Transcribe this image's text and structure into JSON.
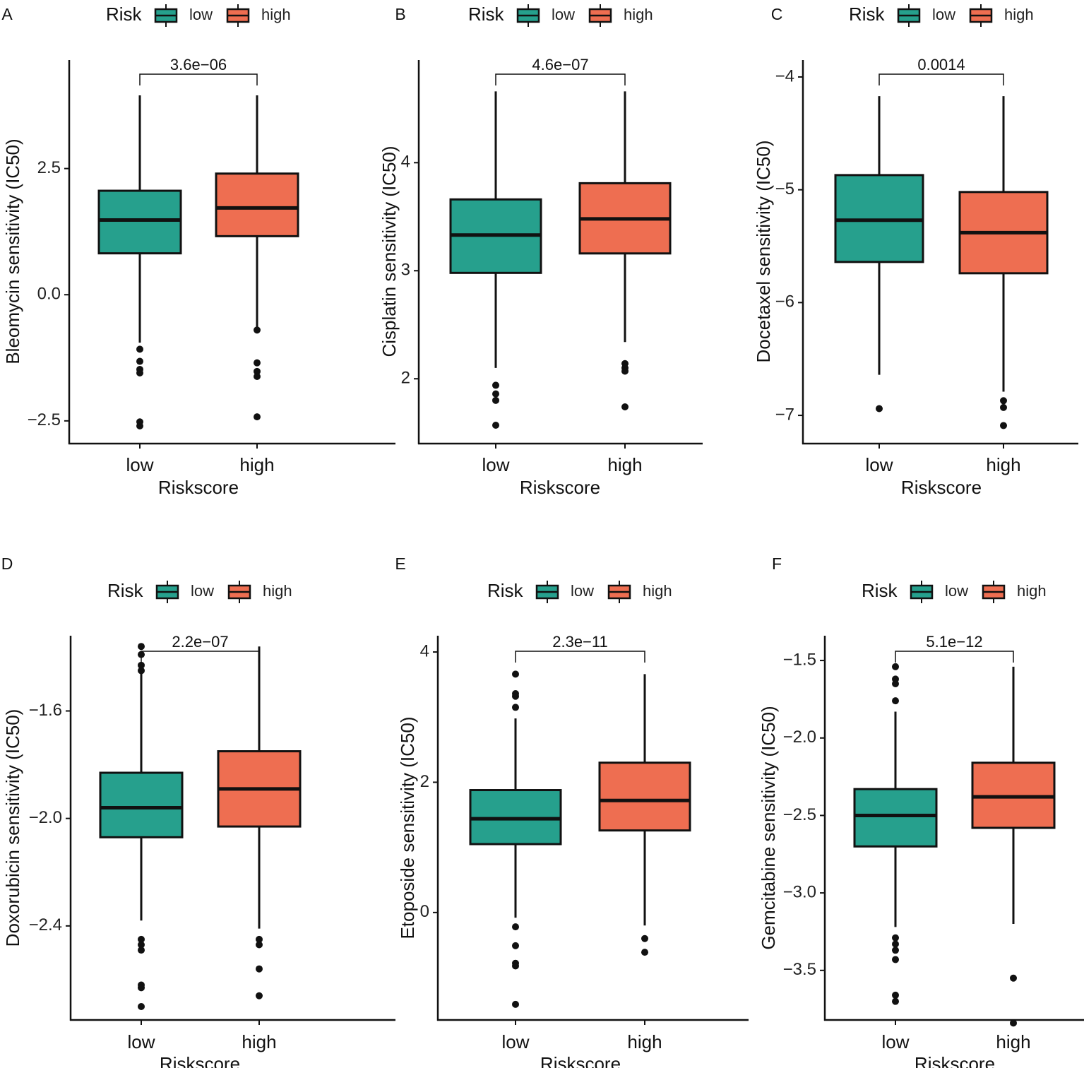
{
  "figure": {
    "legend_title": "Risk",
    "legend_items": [
      "low",
      "high"
    ],
    "x_axis_title": "Riskscore"
  },
  "colors": {
    "low": "#26A08D",
    "high": "#EE6E51",
    "line": "#111111"
  },
  "chart_data": [
    {
      "panel": "A",
      "type": "box",
      "ylabel": "Bleomycin sensitivity (IC50)",
      "xlabel": "Riskscore",
      "categories": [
        "low",
        "high"
      ],
      "p_value": "3.6e−06",
      "ylim": [
        -2.95,
        4.65
      ],
      "yticks": [
        -2.5,
        0.0,
        2.5
      ],
      "ytick_labels": [
        "−2.5",
        "0.0",
        "2.5"
      ],
      "series": [
        {
          "name": "low",
          "whisker_low": -0.95,
          "q1": 0.82,
          "median": 1.48,
          "q3": 2.06,
          "whisker_high": 3.95,
          "outliers": [
            -1.08,
            -1.32,
            -1.48,
            -1.55,
            -2.52,
            -2.6
          ]
        },
        {
          "name": "high",
          "whisker_low": -0.68,
          "q1": 1.16,
          "median": 1.72,
          "q3": 2.4,
          "whisker_high": 3.95,
          "outliers": [
            -0.7,
            -1.35,
            -1.52,
            -1.62,
            -2.42
          ]
        }
      ]
    },
    {
      "panel": "B",
      "type": "box",
      "ylabel": "Cisplatin sensitivity (IC50)",
      "xlabel": "Riskscore",
      "categories": [
        "low",
        "high"
      ],
      "p_value": "4.6e−07",
      "ylim": [
        1.4,
        4.95
      ],
      "yticks": [
        2,
        3,
        4
      ],
      "ytick_labels": [
        "2",
        "3",
        "4"
      ],
      "series": [
        {
          "name": "low",
          "whisker_low": 2.1,
          "q1": 2.98,
          "median": 3.33,
          "q3": 3.66,
          "whisker_high": 4.66,
          "outliers": [
            1.94,
            1.86,
            1.8,
            1.57
          ]
        },
        {
          "name": "high",
          "whisker_low": 2.34,
          "q1": 3.16,
          "median": 3.48,
          "q3": 3.81,
          "whisker_high": 4.66,
          "outliers": [
            2.14,
            2.1,
            2.07,
            1.74
          ]
        }
      ]
    },
    {
      "panel": "C",
      "type": "box",
      "ylabel": "Docetaxel sensitivity (IC50)",
      "xlabel": "Riskscore",
      "categories": [
        "low",
        "high"
      ],
      "p_value": "0.0014",
      "ylim": [
        -7.25,
        -3.85
      ],
      "yticks": [
        -7,
        -6,
        -5,
        -4
      ],
      "ytick_labels": [
        "−7",
        "−6",
        "−5",
        "−4"
      ],
      "series": [
        {
          "name": "low",
          "whisker_low": -6.64,
          "q1": -5.64,
          "median": -5.27,
          "q3": -4.87,
          "whisker_high": -4.17,
          "outliers": [
            -6.94
          ]
        },
        {
          "name": "high",
          "whisker_low": -6.79,
          "q1": -5.74,
          "median": -5.38,
          "q3": -5.02,
          "whisker_high": -4.17,
          "outliers": [
            -6.87,
            -6.93,
            -7.09
          ]
        }
      ]
    },
    {
      "panel": "D",
      "type": "box",
      "ylabel": "Doxorubicin sensitivity (IC50)",
      "xlabel": "Riskscore",
      "categories": [
        "low",
        "high"
      ],
      "p_value": "2.2e−07",
      "ylim": [
        -2.75,
        -1.32
      ],
      "yticks": [
        -2.4,
        -2.0,
        -1.6
      ],
      "ytick_labels": [
        "−2.4",
        "−2.0",
        "−1.6"
      ],
      "series": [
        {
          "name": "low",
          "whisker_low": -2.38,
          "q1": -2.07,
          "median": -1.96,
          "q3": -1.83,
          "whisker_high": -1.42,
          "outliers": [
            -1.36,
            -1.39,
            -1.43,
            -1.45,
            -2.45,
            -2.47,
            -2.49,
            -2.62,
            -2.63,
            -2.7
          ]
        },
        {
          "name": "high",
          "whisker_low": -2.41,
          "q1": -2.03,
          "median": -1.89,
          "q3": -1.75,
          "whisker_high": -1.36,
          "outliers": [
            -2.45,
            -2.47,
            -2.56,
            -2.66
          ]
        }
      ]
    },
    {
      "panel": "E",
      "type": "box",
      "ylabel": "Etoposide sensitivity (IC50)",
      "xlabel": "Riskscore",
      "categories": [
        "low",
        "high"
      ],
      "p_value": "2.3e−11",
      "ylim": [
        -1.65,
        4.25
      ],
      "yticks": [
        0,
        2,
        4
      ],
      "ytick_labels": [
        "0",
        "2",
        "4"
      ],
      "series": [
        {
          "name": "low",
          "whisker_low": -0.08,
          "q1": 1.05,
          "median": 1.44,
          "q3": 1.88,
          "whisker_high": 2.98,
          "outliers": [
            -0.22,
            -0.51,
            -0.78,
            -0.82,
            -1.41,
            3.15,
            3.32,
            3.36,
            3.66
          ]
        },
        {
          "name": "high",
          "whisker_low": -0.2,
          "q1": 1.26,
          "median": 1.72,
          "q3": 2.3,
          "whisker_high": 3.66,
          "outliers": [
            -0.4,
            -0.61
          ]
        }
      ]
    },
    {
      "panel": "F",
      "type": "box",
      "ylabel": "Gemcitabine sensitivity (IC50)",
      "xlabel": "Riskscore",
      "categories": [
        "low",
        "high"
      ],
      "p_value": "5.1e−12",
      "ylim": [
        -3.82,
        -1.34
      ],
      "yticks": [
        -3.5,
        -3.0,
        -2.5,
        -2.0,
        -1.5
      ],
      "ytick_labels": [
        "−3.5",
        "−3.0",
        "−2.5",
        "−2.0",
        "−1.5"
      ],
      "series": [
        {
          "name": "low",
          "whisker_low": -3.22,
          "q1": -2.7,
          "median": -2.5,
          "q3": -2.33,
          "whisker_high": -1.83,
          "outliers": [
            -1.54,
            -1.62,
            -1.65,
            -1.76,
            -3.29,
            -3.33,
            -3.37,
            -3.43,
            -3.66,
            -3.7
          ]
        },
        {
          "name": "high",
          "whisker_low": -3.2,
          "q1": -2.58,
          "median": -2.38,
          "q3": -2.16,
          "whisker_high": -1.54,
          "outliers": [
            -3.55,
            -3.84
          ]
        }
      ]
    }
  ]
}
